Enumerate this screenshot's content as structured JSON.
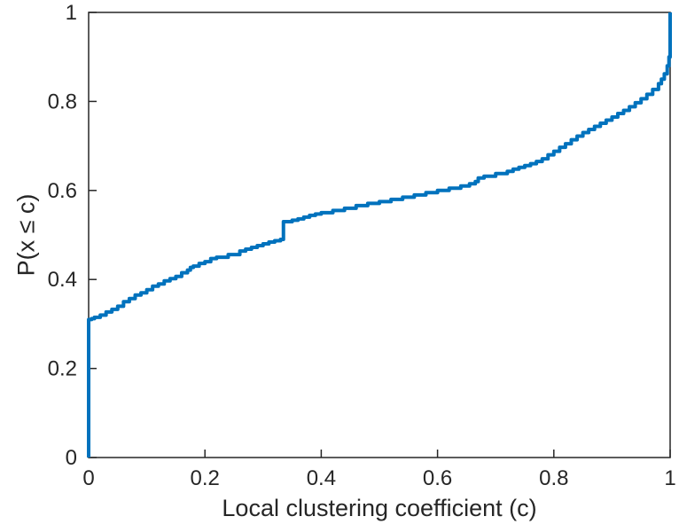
{
  "figure": {
    "background": "#ffffff"
  },
  "chart_data": {
    "type": "line",
    "subtype": "empirical-cdf-step",
    "title": "",
    "xlabel": "Local clustering coefficient (c)",
    "ylabel": "P(x ≤ c)",
    "xlim": [
      0,
      1
    ],
    "ylim": [
      0,
      1
    ],
    "xticks": [
      0,
      0.2,
      0.4,
      0.6,
      0.8,
      1
    ],
    "xtick_labels": [
      "0",
      "0.2",
      "0.4",
      "0.6",
      "0.8",
      "1"
    ],
    "yticks": [
      0,
      0.2,
      0.4,
      0.6,
      0.8,
      1
    ],
    "ytick_labels": [
      "0",
      "0.2",
      "0.4",
      "0.6",
      "0.8",
      "1"
    ],
    "grid": false,
    "legend": null,
    "line_color": "#0072BD",
    "line_width": 4,
    "axis_color": "#262626",
    "series": [
      {
        "name": "empirical CDF of local clustering coefficient",
        "points": [
          [
            0,
            0
          ],
          [
            0,
            0.31
          ],
          [
            0.005,
            0.312
          ],
          [
            0.01,
            0.315
          ],
          [
            0.02,
            0.32
          ],
          [
            0.03,
            0.327
          ],
          [
            0.04,
            0.333
          ],
          [
            0.05,
            0.34
          ],
          [
            0.06,
            0.35
          ],
          [
            0.07,
            0.357
          ],
          [
            0.08,
            0.365
          ],
          [
            0.09,
            0.37
          ],
          [
            0.1,
            0.377
          ],
          [
            0.11,
            0.385
          ],
          [
            0.12,
            0.39
          ],
          [
            0.13,
            0.397
          ],
          [
            0.14,
            0.402
          ],
          [
            0.15,
            0.407
          ],
          [
            0.16,
            0.415
          ],
          [
            0.17,
            0.421
          ],
          [
            0.175,
            0.427
          ],
          [
            0.18,
            0.43
          ],
          [
            0.19,
            0.436
          ],
          [
            0.2,
            0.44
          ],
          [
            0.21,
            0.447
          ],
          [
            0.22,
            0.45
          ],
          [
            0.24,
            0.456
          ],
          [
            0.26,
            0.464
          ],
          [
            0.27,
            0.468
          ],
          [
            0.28,
            0.472
          ],
          [
            0.29,
            0.476
          ],
          [
            0.3,
            0.48
          ],
          [
            0.31,
            0.484
          ],
          [
            0.32,
            0.487
          ],
          [
            0.33,
            0.49
          ],
          [
            0.335,
            0.53
          ],
          [
            0.35,
            0.533
          ],
          [
            0.36,
            0.536
          ],
          [
            0.37,
            0.54
          ],
          [
            0.38,
            0.544
          ],
          [
            0.39,
            0.547
          ],
          [
            0.4,
            0.55
          ],
          [
            0.42,
            0.555
          ],
          [
            0.44,
            0.56
          ],
          [
            0.46,
            0.566
          ],
          [
            0.48,
            0.571
          ],
          [
            0.5,
            0.575
          ],
          [
            0.52,
            0.58
          ],
          [
            0.54,
            0.585
          ],
          [
            0.56,
            0.59
          ],
          [
            0.58,
            0.595
          ],
          [
            0.6,
            0.6
          ],
          [
            0.62,
            0.605
          ],
          [
            0.64,
            0.61
          ],
          [
            0.655,
            0.615
          ],
          [
            0.665,
            0.62
          ],
          [
            0.67,
            0.628
          ],
          [
            0.68,
            0.632
          ],
          [
            0.7,
            0.638
          ],
          [
            0.72,
            0.643
          ],
          [
            0.73,
            0.648
          ],
          [
            0.74,
            0.652
          ],
          [
            0.75,
            0.656
          ],
          [
            0.76,
            0.66
          ],
          [
            0.77,
            0.665
          ],
          [
            0.78,
            0.671
          ],
          [
            0.79,
            0.68
          ],
          [
            0.8,
            0.688
          ],
          [
            0.81,
            0.697
          ],
          [
            0.82,
            0.705
          ],
          [
            0.83,
            0.714
          ],
          [
            0.84,
            0.722
          ],
          [
            0.85,
            0.73
          ],
          [
            0.86,
            0.737
          ],
          [
            0.87,
            0.744
          ],
          [
            0.88,
            0.751
          ],
          [
            0.89,
            0.758
          ],
          [
            0.9,
            0.765
          ],
          [
            0.91,
            0.773
          ],
          [
            0.92,
            0.78
          ],
          [
            0.93,
            0.788
          ],
          [
            0.94,
            0.797
          ],
          [
            0.95,
            0.806
          ],
          [
            0.96,
            0.816
          ],
          [
            0.97,
            0.827
          ],
          [
            0.98,
            0.84
          ],
          [
            0.985,
            0.85
          ],
          [
            0.99,
            0.862
          ],
          [
            0.995,
            0.88
          ],
          [
            0.998,
            0.9
          ],
          [
            1,
            0.93
          ],
          [
            1,
            1
          ]
        ]
      }
    ]
  }
}
